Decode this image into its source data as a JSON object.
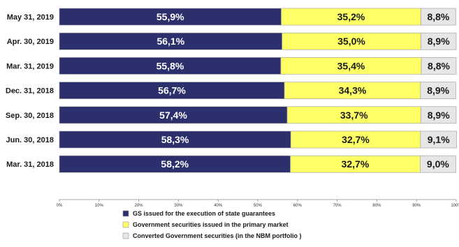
{
  "chart_data": {
    "type": "bar",
    "orientation": "horizontal",
    "stacked": true,
    "percent_stacked": true,
    "categories": [
      "May 31, 2019",
      "Apr. 30, 2019",
      "Mar. 31, 2019",
      "Dec. 31, 2018",
      "Sep. 30, 2018",
      "Jun. 30, 2018",
      "Mar. 31, 2018"
    ],
    "series": [
      {
        "name": "GS issued for the execution of state guarantees",
        "values": [
          55.9,
          56.1,
          55.8,
          56.7,
          57.4,
          58.3,
          58.2
        ],
        "labels": [
          "55,9%",
          "56,1%",
          "55,8%",
          "56,7%",
          "57,4%",
          "58,3%",
          "58,2%"
        ],
        "color": "#2b2f6b",
        "label_color": "#ffffff"
      },
      {
        "name": "Government securities issued in the primary market",
        "values": [
          35.2,
          35.0,
          35.4,
          34.3,
          33.7,
          32.7,
          32.7
        ],
        "labels": [
          "35,2%",
          "35,0%",
          "35,4%",
          "34,3%",
          "33,7%",
          "32,7%",
          "32,7%"
        ],
        "color": "#ffff66",
        "label_color": "#1a1a1a"
      },
      {
        "name": "Converted Government securities (in the NBM portfolio )",
        "values": [
          8.8,
          8.9,
          8.8,
          8.9,
          8.9,
          9.1,
          9.0
        ],
        "labels": [
          "8,8%",
          "8,9%",
          "8,8%",
          "8,9%",
          "8,9%",
          "9,1%",
          "9,0%"
        ],
        "color": "#e6e6e6",
        "label_color": "#1a1a1a"
      }
    ],
    "xlim": [
      0,
      100
    ],
    "x_ticks": [
      "0%",
      "10%",
      "20%",
      "30%",
      "40%",
      "50%",
      "60%",
      "70%",
      "80%",
      "90%",
      "100%"
    ],
    "grid": false,
    "legend_position": "bottom"
  }
}
